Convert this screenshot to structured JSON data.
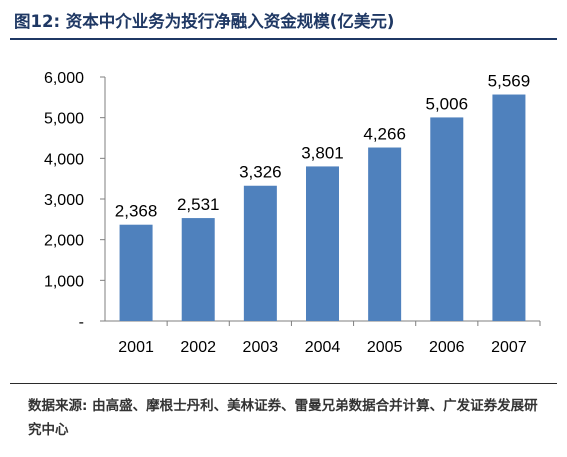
{
  "title": "图12: 资本中介业务为投行净融入资金规模(亿美元)",
  "source": "数据来源: 由高盛、摩根士丹利、美林证券、雷曼兄弟数据合并计算、广发证券发展研究中心",
  "colors": {
    "bar": "#4f81bd",
    "title": "#1f3864",
    "axis": "#7f7f7f"
  },
  "chart_data": {
    "type": "bar",
    "categories": [
      "2001",
      "2002",
      "2003",
      "2004",
      "2005",
      "2006",
      "2007"
    ],
    "values": [
      2368,
      2531,
      3326,
      3801,
      4266,
      5006,
      5569
    ],
    "data_labels": [
      "2,368",
      "2,531",
      "3,326",
      "3,801",
      "4,266",
      "5,006",
      "5,569"
    ],
    "yticks": [
      "-",
      "1,000",
      "2,000",
      "3,000",
      "4,000",
      "5,000",
      "6,000"
    ],
    "ylim": [
      0,
      6000
    ],
    "grid": false,
    "legend": "none"
  }
}
